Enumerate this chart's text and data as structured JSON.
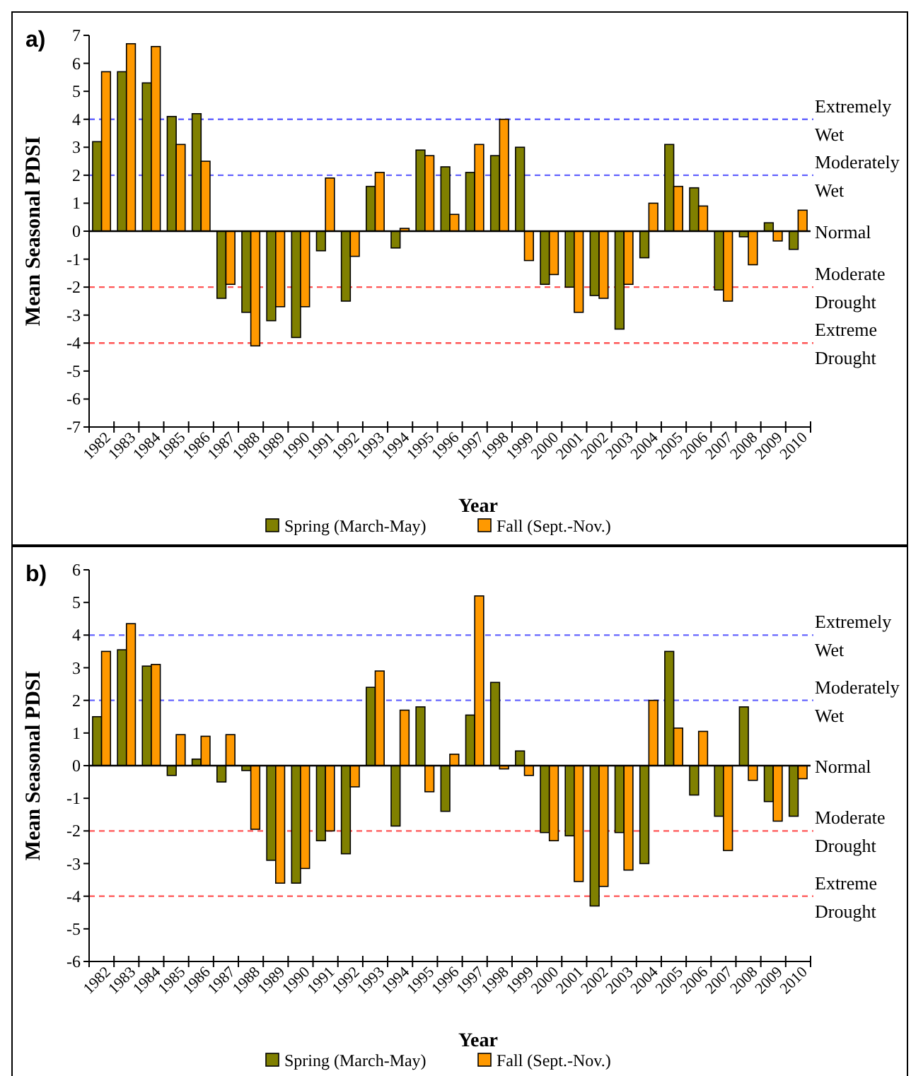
{
  "chart_data": [
    {
      "type": "bar",
      "title": "a)",
      "xlabel": "Year",
      "ylabel": "Mean Seasonal PDSI",
      "categories": [
        "1982",
        "1983",
        "1984",
        "1985",
        "1986",
        "1987",
        "1988",
        "1989",
        "1990",
        "1991",
        "1992",
        "1993",
        "1994",
        "1995",
        "1996",
        "1997",
        "1998",
        "1999",
        "2000",
        "2001",
        "2002",
        "2003",
        "2004",
        "2005",
        "2006",
        "2007",
        "2008",
        "2009",
        "2010"
      ],
      "series": [
        {
          "name": "Spring (March-May)",
          "color": "#808000",
          "values": [
            3.2,
            5.7,
            5.3,
            4.1,
            4.2,
            -2.4,
            -2.9,
            -3.2,
            -3.8,
            -0.7,
            -2.5,
            1.6,
            -0.6,
            2.9,
            2.3,
            2.1,
            2.7,
            3.0,
            -1.9,
            -2.0,
            -2.3,
            -3.5,
            -0.95,
            3.1,
            1.55,
            -2.1,
            -0.2,
            0.3,
            -0.65
          ]
        },
        {
          "name": "Fall (Sept.-Nov.)",
          "color": "#ff9900",
          "values": [
            5.7,
            6.7,
            6.6,
            3.1,
            2.5,
            -1.9,
            -4.1,
            -2.7,
            -2.7,
            1.9,
            -0.9,
            2.1,
            0.1,
            2.7,
            0.6,
            3.1,
            4.0,
            -1.05,
            -1.55,
            -2.9,
            -2.4,
            -1.9,
            1.0,
            1.6,
            0.9,
            -2.5,
            -1.2,
            -0.35,
            0.75
          ]
        }
      ],
      "ylim": [
        -7,
        7
      ],
      "yticks": [
        -7,
        -6,
        -5,
        -4,
        -3,
        -2,
        -1,
        0,
        1,
        2,
        3,
        4,
        5,
        6,
        7
      ],
      "ref_lines": [
        {
          "axis": "y",
          "value": 4,
          "label": "Extremely Wet",
          "color": "#6666ff",
          "line_style": "dashed"
        },
        {
          "axis": "y",
          "value": 2,
          "label": "Moderately Wet",
          "color": "#6666ff",
          "line_style": "dashed"
        },
        {
          "axis": "y",
          "value": -2,
          "label": "Moderate Drought",
          "color": "#ff5555",
          "line_style": "dashed"
        },
        {
          "axis": "y",
          "value": -4,
          "label": "Extreme Drought",
          "color": "#ff5555",
          "line_style": "dashed"
        }
      ],
      "annotations": [
        "Normal"
      ],
      "legend": "bottom",
      "grid": false
    },
    {
      "type": "bar",
      "title": "b)",
      "xlabel": "Year",
      "ylabel": "Mean Seasonal PDSI",
      "categories": [
        "1982",
        "1983",
        "1984",
        "1985",
        "1986",
        "1987",
        "1988",
        "1989",
        "1990",
        "1991",
        "1992",
        "1993",
        "1994",
        "1995",
        "1996",
        "1997",
        "1998",
        "1999",
        "2000",
        "2001",
        "2002",
        "2003",
        "2004",
        "2005",
        "2006",
        "2007",
        "2008",
        "2009",
        "2010"
      ],
      "series": [
        {
          "name": "Spring (March-May)",
          "color": "#808000",
          "values": [
            1.5,
            3.55,
            3.05,
            -0.3,
            0.2,
            -0.5,
            -0.15,
            -2.9,
            -3.6,
            -2.3,
            -2.7,
            2.4,
            -1.85,
            1.8,
            -1.4,
            1.55,
            2.55,
            0.45,
            -2.05,
            -2.15,
            -4.3,
            -2.05,
            -3.0,
            3.5,
            -0.9,
            -1.55,
            1.8,
            -1.1,
            -1.55
          ]
        },
        {
          "name": "Fall (Sept.-Nov.)",
          "color": "#ff9900",
          "values": [
            3.5,
            4.35,
            3.1,
            0.95,
            0.9,
            0.95,
            -1.95,
            -3.6,
            -3.15,
            -2.0,
            -0.65,
            2.9,
            1.7,
            -0.8,
            0.35,
            5.2,
            -0.1,
            -0.3,
            -2.3,
            -3.55,
            -3.7,
            -3.2,
            2.0,
            1.15,
            1.05,
            -2.6,
            -0.45,
            -1.7,
            -0.4
          ]
        }
      ],
      "ylim": [
        -6,
        6
      ],
      "yticks": [
        -6,
        -5,
        -4,
        -3,
        -2,
        -1,
        0,
        1,
        2,
        3,
        4,
        5,
        6
      ],
      "ref_lines": [
        {
          "axis": "y",
          "value": 4,
          "label": "Extremely Wet",
          "color": "#6666ff",
          "line_style": "dashed"
        },
        {
          "axis": "y",
          "value": 2,
          "label": "Moderately Wet",
          "color": "#6666ff",
          "line_style": "dashed"
        },
        {
          "axis": "y",
          "value": -2,
          "label": "Moderate Drought",
          "color": "#ff5555",
          "line_style": "dashed"
        },
        {
          "axis": "y",
          "value": -4,
          "label": "Extreme Drought",
          "color": "#ff5555",
          "line_style": "dashed"
        }
      ],
      "annotations": [
        "Normal"
      ],
      "legend": "bottom",
      "grid": false
    }
  ]
}
